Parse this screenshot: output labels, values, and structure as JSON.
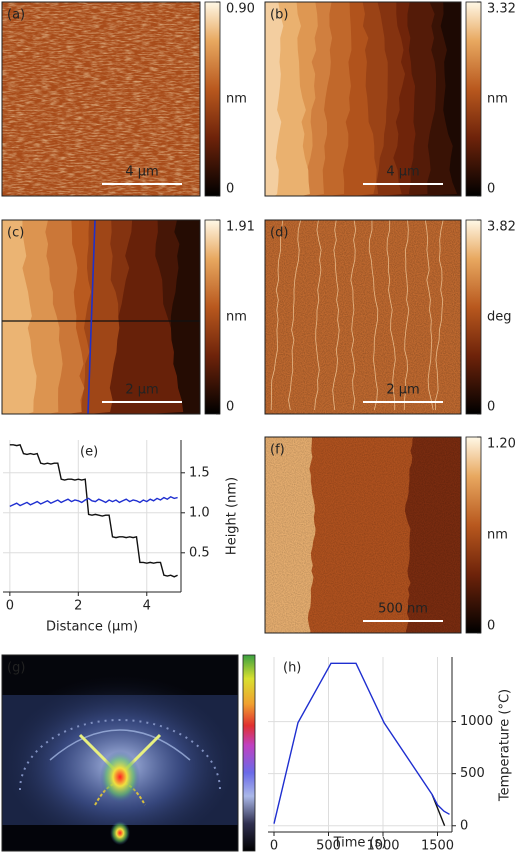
{
  "chart_data": [
    {
      "type": "image",
      "panel": "(a)",
      "colorbar_label": "nm",
      "clim": [
        0,
        0.9
      ],
      "cticks": [
        0,
        {
          "value": 0.9,
          "label": "0.90"
        }
      ],
      "scale_bar": "4 µm"
    },
    {
      "type": "image",
      "panel": "(b)",
      "colorbar_label": "nm",
      "clim": [
        0,
        3.32
      ],
      "cticks": [
        0,
        3.32
      ],
      "scale_bar": "4 µm"
    },
    {
      "type": "image",
      "panel": "(c)",
      "colorbar_label": "nm",
      "clim": [
        0,
        1.91
      ],
      "cticks": [
        0,
        1.91
      ],
      "scale_bar": "2 µm"
    },
    {
      "type": "image",
      "panel": "(d)",
      "colorbar_label": "deg",
      "clim": [
        0,
        3.82
      ],
      "cticks": [
        0,
        3.82
      ],
      "scale_bar": "2 µm"
    },
    {
      "type": "line",
      "panel": "(e)",
      "xlabel": "Distance (µm)",
      "ylabel": "Height (nm)",
      "xlim": [
        -0.2,
        5.0
      ],
      "ylim": [
        0.01,
        1.91
      ],
      "xticks": [
        0,
        2,
        4
      ],
      "yticks": [
        0.5,
        {
          "value": 1,
          "label": "1.0"
        },
        1.5
      ],
      "grid": true,
      "series": [
        {
          "color": "#111111",
          "x": [
            0,
            0.1,
            0.2,
            0.3,
            0.4,
            0.5,
            0.6,
            0.7,
            0.8,
            0.9,
            1.0,
            1.1,
            1.2,
            1.3,
            1.4,
            1.5,
            1.6,
            1.7,
            1.8,
            1.9,
            2.0,
            2.1,
            2.2,
            2.3,
            2.4,
            2.5,
            2.6,
            2.7,
            2.8,
            2.9,
            3.0,
            3.1,
            3.2,
            3.3,
            3.4,
            3.5,
            3.6,
            3.7,
            3.8,
            3.9,
            4.0,
            4.1,
            4.2,
            4.3,
            4.4,
            4.5,
            4.6,
            4.7,
            4.8,
            4.9
          ],
          "values": [
            1.85,
            1.85,
            1.84,
            1.85,
            1.74,
            1.73,
            1.74,
            1.73,
            1.74,
            1.62,
            1.61,
            1.62,
            1.61,
            1.62,
            1.62,
            1.42,
            1.41,
            1.42,
            1.42,
            1.41,
            1.42,
            1.41,
            1.42,
            0.98,
            0.97,
            0.98,
            0.97,
            0.96,
            0.97,
            0.97,
            0.7,
            0.69,
            0.7,
            0.7,
            0.69,
            0.7,
            0.69,
            0.7,
            0.38,
            0.38,
            0.37,
            0.38,
            0.37,
            0.38,
            0.38,
            0.22,
            0.21,
            0.22,
            0.2,
            0.22
          ]
        },
        {
          "color": "#1f2fd0",
          "x": [
            0,
            0.1,
            0.2,
            0.3,
            0.4,
            0.5,
            0.6,
            0.7,
            0.8,
            0.9,
            1.0,
            1.1,
            1.2,
            1.3,
            1.4,
            1.5,
            1.6,
            1.7,
            1.8,
            1.9,
            2.0,
            2.1,
            2.2,
            2.3,
            2.4,
            2.5,
            2.6,
            2.7,
            2.8,
            2.9,
            3.0,
            3.1,
            3.2,
            3.3,
            3.4,
            3.5,
            3.6,
            3.7,
            3.8,
            3.9,
            4.0,
            4.1,
            4.2,
            4.3,
            4.4,
            4.5,
            4.6,
            4.7,
            4.8,
            4.9
          ],
          "values": [
            1.08,
            1.1,
            1.12,
            1.09,
            1.11,
            1.13,
            1.1,
            1.12,
            1.14,
            1.11,
            1.13,
            1.15,
            1.12,
            1.14,
            1.16,
            1.13,
            1.15,
            1.17,
            1.14,
            1.16,
            1.15,
            1.13,
            1.16,
            1.18,
            1.15,
            1.14,
            1.17,
            1.15,
            1.13,
            1.16,
            1.14,
            1.16,
            1.13,
            1.15,
            1.17,
            1.14,
            1.16,
            1.15,
            1.13,
            1.16,
            1.14,
            1.17,
            1.15,
            1.18,
            1.16,
            1.19,
            1.17,
            1.2,
            1.18,
            1.19
          ]
        }
      ]
    },
    {
      "type": "image",
      "panel": "(f)",
      "colorbar_label": "nm",
      "clim": [
        0,
        1.2
      ],
      "cticks": [
        0,
        {
          "value": 1.2,
          "label": "1.20"
        }
      ],
      "scale_bar": "500 nm"
    },
    {
      "type": "image",
      "panel": "(g)"
    },
    {
      "type": "line",
      "panel": "(h)",
      "xlabel": "Time (s)",
      "ylabel": "Temperature (°C)",
      "xlim": [
        -55,
        1633
      ],
      "ylim": [
        -60,
        1620
      ],
      "xticks": [
        0,
        500,
        1000,
        1500
      ],
      "yticks": [
        0,
        500,
        1000
      ],
      "grid": true,
      "series": [
        {
          "color": "#111111",
          "x": [
            1450,
            1565
          ],
          "values": [
            300,
            0
          ]
        },
        {
          "color": "#1f2fd0",
          "x": [
            0,
            220,
            523,
            752,
            1009,
            1450,
            1500,
            1560,
            1610
          ],
          "values": [
            20,
            990,
            1560,
            1560,
            990,
            300,
            200,
            140,
            110
          ]
        }
      ]
    }
  ]
}
